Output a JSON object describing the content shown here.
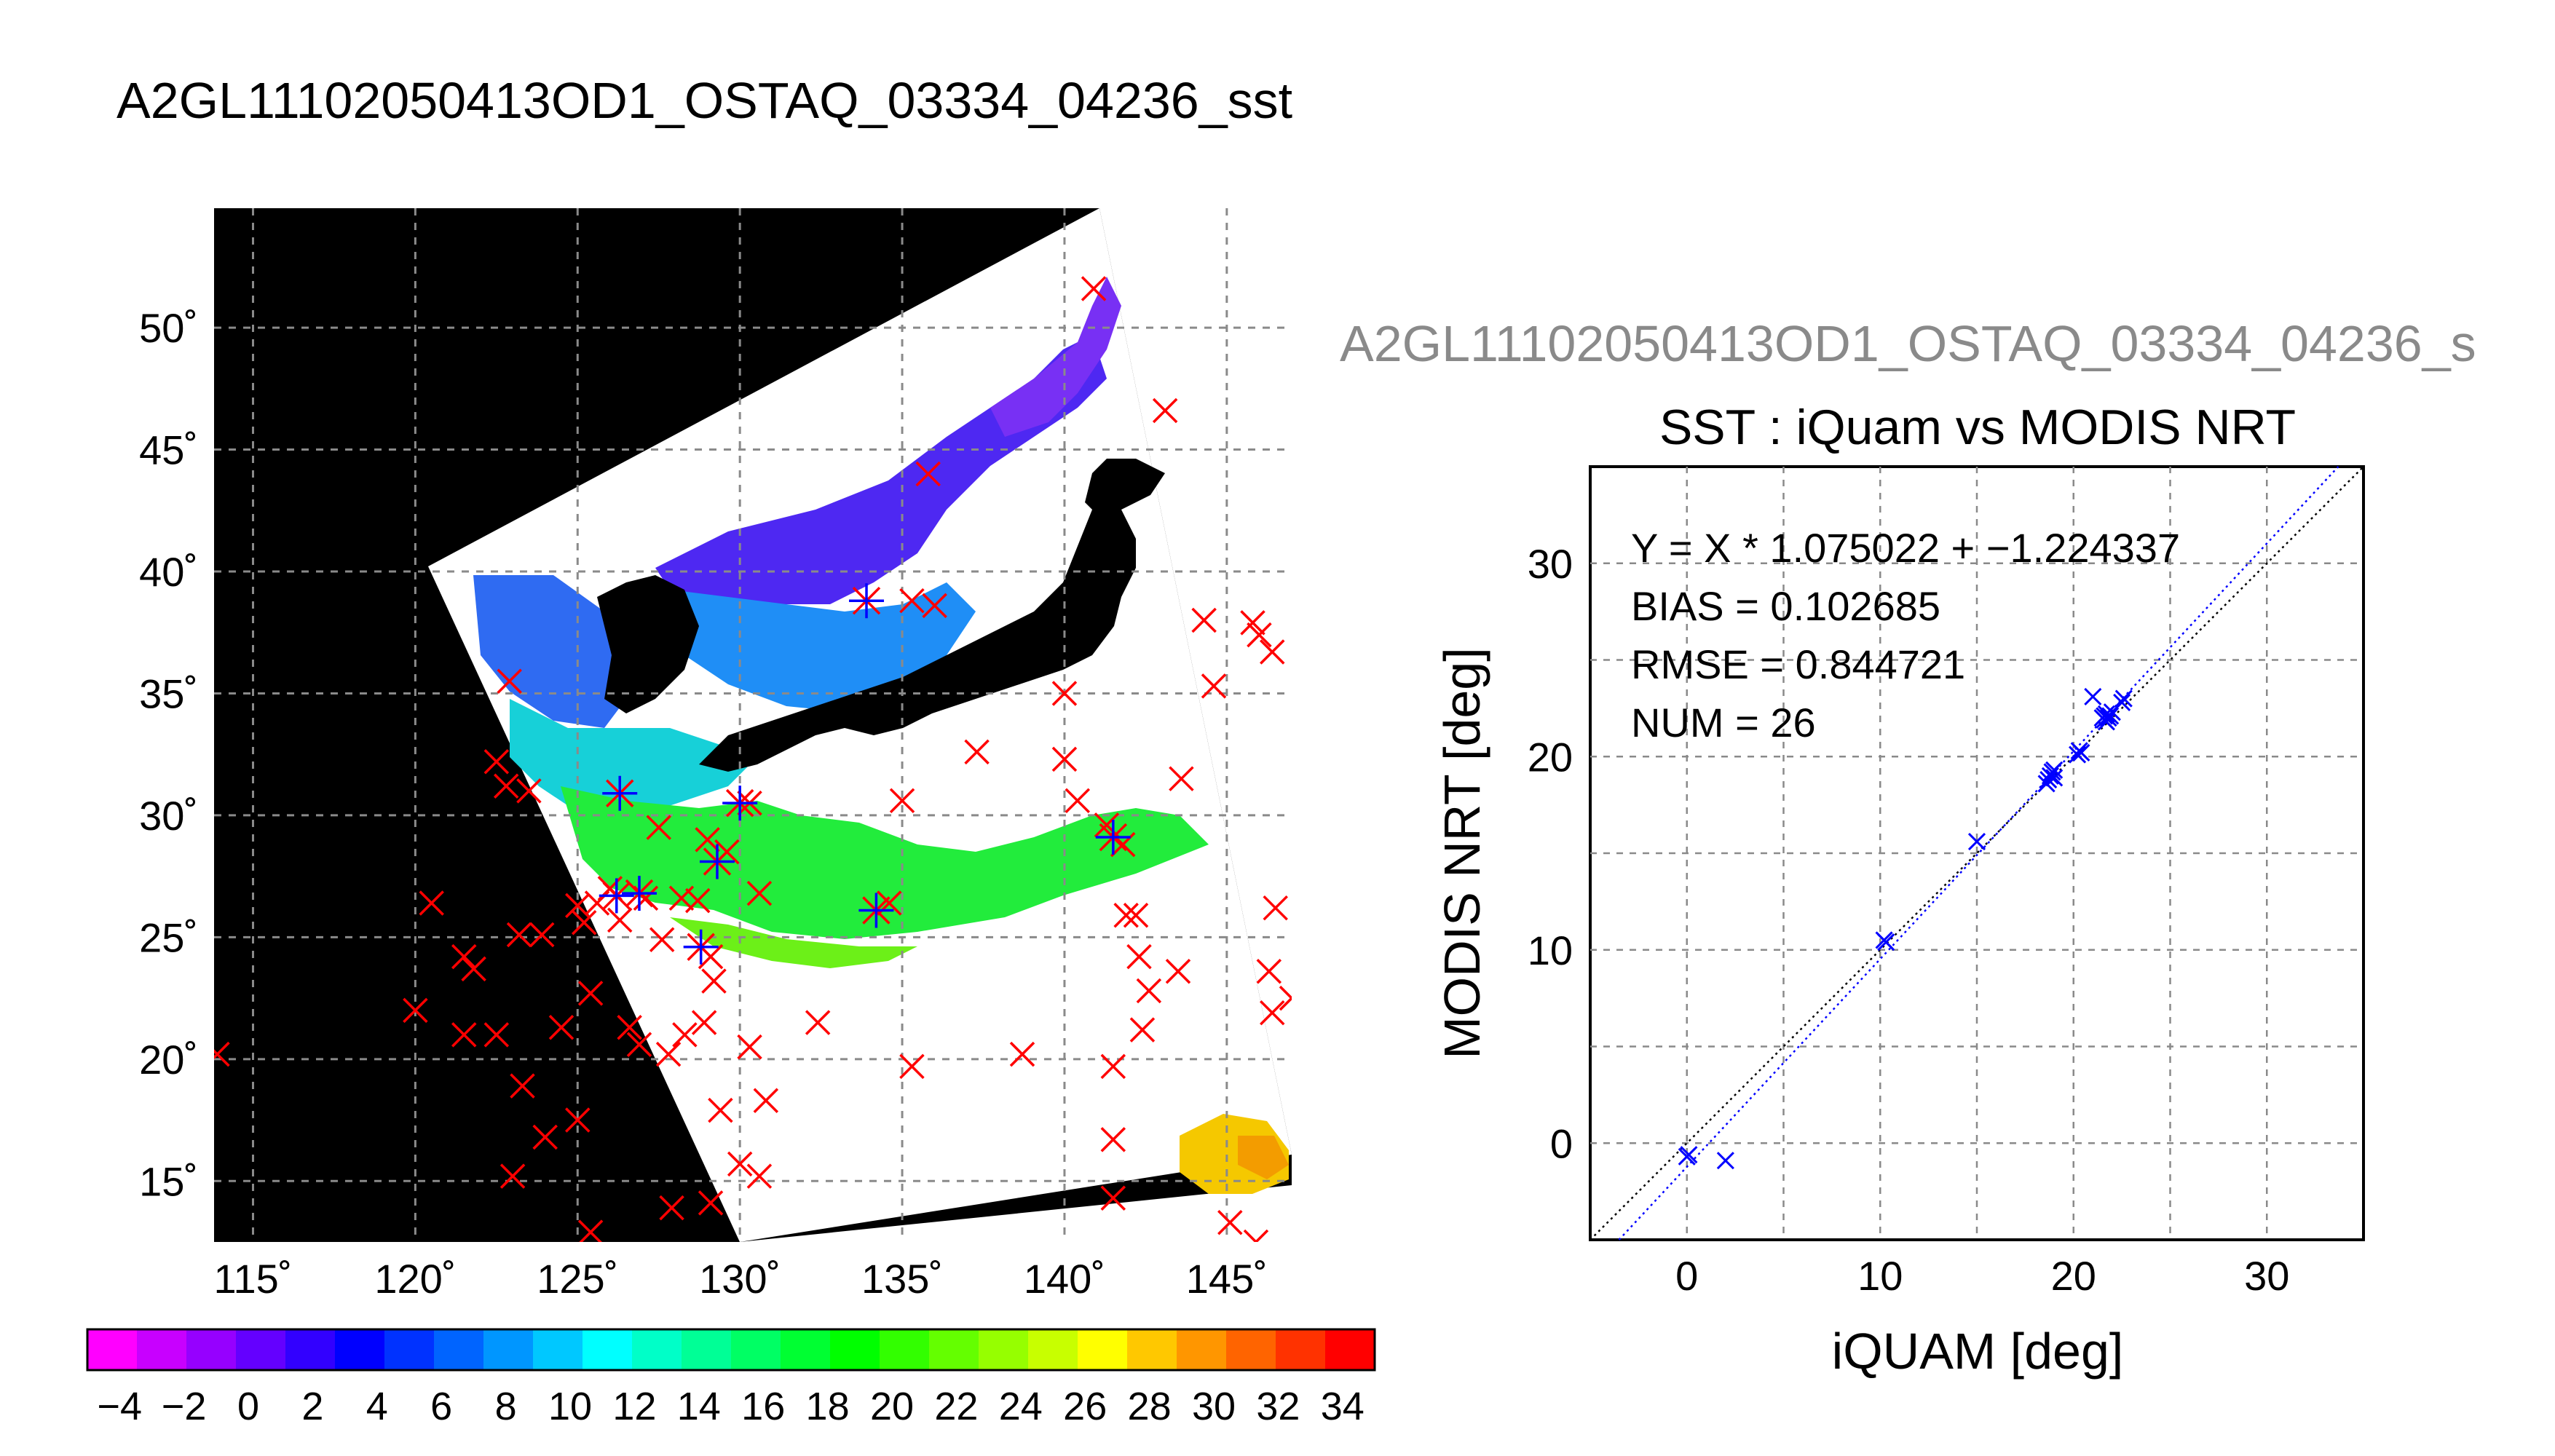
{
  "figure": {
    "title": "A2GL11102050413OD1_OSTAQ_03334_04236_sst",
    "subtitle": "A2GL11102050413OD1_OSTAQ_03334_04236_s"
  },
  "colors": {
    "background": "#ffffff",
    "land": "#000000",
    "cloud": "#ffffff",
    "match_marker": "#ff0000",
    "valid_marker": "#0000ff",
    "scatter_marker": "#0000ff",
    "fit_line": "#0000ff",
    "identity_line": "#000000",
    "grid": "#808080"
  },
  "chart_data": [
    {
      "type": "heatmap",
      "name": "SST map",
      "x_ticks": [
        "115˚",
        "120˚",
        "125˚",
        "130˚",
        "135˚",
        "140˚",
        "145˚"
      ],
      "x_tick_values": [
        115,
        120,
        125,
        130,
        135,
        140,
        145
      ],
      "y_ticks": [
        "50˚",
        "45˚",
        "40˚",
        "35˚",
        "30˚",
        "25˚",
        "20˚",
        "15˚"
      ],
      "y_tick_values": [
        50,
        45,
        40,
        35,
        30,
        25,
        20,
        15
      ],
      "xlim": [
        113.8,
        147
      ],
      "ylim": [
        12.5,
        54.9
      ],
      "grid": true,
      "colorbar": {
        "range": [
          -5,
          35
        ],
        "tick_labels": [
          "−4",
          "−2",
          "0",
          "2",
          "4",
          "6",
          "8",
          "10",
          "12",
          "14",
          "16",
          "18",
          "20",
          "22",
          "24",
          "26",
          "28",
          "30",
          "32",
          "34"
        ],
        "tick_values": [
          -4,
          -2,
          0,
          2,
          4,
          6,
          8,
          10,
          12,
          14,
          16,
          18,
          20,
          22,
          24,
          26,
          28,
          30,
          32,
          34
        ],
        "colors": [
          "#ff00ff",
          "#c800ff",
          "#9600ff",
          "#6400ff",
          "#3200ff",
          "#0000ff",
          "#0032ff",
          "#0064ff",
          "#0096ff",
          "#00c8ff",
          "#00ffff",
          "#00ffc8",
          "#00ff96",
          "#00ff64",
          "#00ff32",
          "#00ff00",
          "#32ff00",
          "#64ff00",
          "#96ff00",
          "#c8ff00",
          "#ffff00",
          "#ffc800",
          "#ff9600",
          "#ff6400",
          "#ff3200",
          "#ff0000"
        ]
      },
      "matchups": [
        [
          113.9,
          20.2
        ],
        [
          120.0,
          22.0
        ],
        [
          120.5,
          26.4
        ],
        [
          121.5,
          24.2
        ],
        [
          121.8,
          23.7
        ],
        [
          121.5,
          21.0
        ],
        [
          122.5,
          21.0
        ],
        [
          122.5,
          32.2
        ],
        [
          122.8,
          31.2
        ],
        [
          122.9,
          35.5
        ],
        [
          123.2,
          25.1
        ],
        [
          123.5,
          31.0
        ],
        [
          123.9,
          25.1
        ],
        [
          123.3,
          18.9
        ],
        [
          123.0,
          15.2
        ],
        [
          124.0,
          16.8
        ],
        [
          124.5,
          21.3
        ],
        [
          125.0,
          26.3
        ],
        [
          125.2,
          25.6
        ],
        [
          125.4,
          22.7
        ],
        [
          125.0,
          17.5
        ],
        [
          125.6,
          26.4
        ],
        [
          125.4,
          12.9
        ],
        [
          126.0,
          27.0
        ],
        [
          126.3,
          25.7
        ],
        [
          126.6,
          21.3
        ],
        [
          126.9,
          20.6
        ],
        [
          127.1,
          26.6
        ],
        [
          127.6,
          24.9
        ],
        [
          127.8,
          20.2
        ],
        [
          127.5,
          29.5
        ],
        [
          127.9,
          13.9
        ],
        [
          128.3,
          21.0
        ],
        [
          128.2,
          26.6
        ],
        [
          128.7,
          26.5
        ],
        [
          128.9,
          21.5
        ],
        [
          129.0,
          29.0
        ],
        [
          129.1,
          24.2
        ],
        [
          129.1,
          14.1
        ],
        [
          129.2,
          23.2
        ],
        [
          129.4,
          17.9
        ],
        [
          129.6,
          28.5
        ],
        [
          130.0,
          15.7
        ],
        [
          130.3,
          20.5
        ],
        [
          130.3,
          30.5
        ],
        [
          130.6,
          26.8
        ],
        [
          130.6,
          15.2
        ],
        [
          130.8,
          18.3
        ],
        [
          132.4,
          21.5
        ],
        [
          134.6,
          26.4
        ],
        [
          135.0,
          30.6
        ],
        [
          135.3,
          19.7
        ],
        [
          135.3,
          38.8
        ],
        [
          136.0,
          38.6
        ],
        [
          135.8,
          44.0
        ],
        [
          137.3,
          32.6
        ],
        [
          138.7,
          20.2
        ],
        [
          140.0,
          35.0
        ],
        [
          140.0,
          32.3
        ],
        [
          140.4,
          30.6
        ],
        [
          140.9,
          51.6
        ],
        [
          141.3,
          29.6
        ],
        [
          141.5,
          19.7
        ],
        [
          141.5,
          16.7
        ],
        [
          141.5,
          14.3
        ],
        [
          141.8,
          28.8
        ],
        [
          141.9,
          25.9
        ],
        [
          142.2,
          25.9
        ],
        [
          142.3,
          24.2
        ],
        [
          142.4,
          21.2
        ],
        [
          142.6,
          22.8
        ],
        [
          143.1,
          46.6
        ],
        [
          143.5,
          23.6
        ],
        [
          143.6,
          31.5
        ],
        [
          144.3,
          38.0
        ],
        [
          144.6,
          35.3
        ],
        [
          145.1,
          13.3
        ],
        [
          145.8,
          37.9
        ],
        [
          145.9,
          12.5
        ],
        [
          146.0,
          37.4
        ],
        [
          146.3,
          23.6
        ],
        [
          146.4,
          36.7
        ],
        [
          146.4,
          21.9
        ],
        [
          146.5,
          26.2
        ],
        [
          147.0,
          22.5
        ]
      ],
      "valid_matchups": [
        [
          126.3,
          30.9
        ],
        [
          126.2,
          26.7
        ],
        [
          126.9,
          26.8
        ],
        [
          128.8,
          24.6
        ],
        [
          129.3,
          28.1
        ],
        [
          130.0,
          30.5
        ],
        [
          133.9,
          38.8
        ],
        [
          134.2,
          26.1
        ],
        [
          141.5,
          29.1
        ]
      ]
    },
    {
      "type": "scatter",
      "name": "SST : iQuam vs MODIS NRT",
      "title": "SST : iQuam vs MODIS NRT",
      "xlabel": "iQUAM [deg]",
      "ylabel": "MODIS NRT [deg]",
      "xlim": [
        -5,
        35
      ],
      "ylim": [
        -5,
        35
      ],
      "x_ticks": [
        0,
        10,
        20,
        30
      ],
      "y_ticks": [
        0,
        10,
        20,
        30
      ],
      "x_tick_labels": [
        "0",
        "10",
        "20",
        "30"
      ],
      "y_tick_labels": [
        "0",
        "10",
        "20",
        "30"
      ],
      "grid": true,
      "stats": {
        "equation": "Y = X * 1.075022 + −1.224337",
        "bias": "BIAS = 0.102685",
        "rmse": "RMSE = 0.844721",
        "num": "NUM = 26"
      },
      "fit": {
        "slope": 1.075022,
        "intercept": -1.224337
      },
      "points": [
        {
          "x": 0.0,
          "y": -0.7
        },
        {
          "x": 0.1,
          "y": -0.6
        },
        {
          "x": 2.0,
          "y": -0.9
        },
        {
          "x": 10.2,
          "y": 10.5
        },
        {
          "x": 10.3,
          "y": 10.4
        },
        {
          "x": 15.0,
          "y": 15.6
        },
        {
          "x": 18.7,
          "y": 18.8
        },
        {
          "x": 18.8,
          "y": 19.0
        },
        {
          "x": 18.9,
          "y": 19.2
        },
        {
          "x": 19.0,
          "y": 18.9
        },
        {
          "x": 18.6,
          "y": 18.6
        },
        {
          "x": 19.0,
          "y": 19.3
        },
        {
          "x": 20.2,
          "y": 20.1
        },
        {
          "x": 20.4,
          "y": 20.2
        },
        {
          "x": 20.3,
          "y": 20.3
        },
        {
          "x": 21.0,
          "y": 23.1
        },
        {
          "x": 21.5,
          "y": 22.0
        },
        {
          "x": 21.6,
          "y": 21.9
        },
        {
          "x": 21.7,
          "y": 22.2
        },
        {
          "x": 21.8,
          "y": 22.0
        },
        {
          "x": 21.9,
          "y": 22.1
        },
        {
          "x": 22.0,
          "y": 22.3
        },
        {
          "x": 21.7,
          "y": 21.8
        },
        {
          "x": 22.5,
          "y": 22.8
        },
        {
          "x": 22.6,
          "y": 23.0
        },
        {
          "x": 21.6,
          "y": 22.1
        }
      ]
    }
  ]
}
